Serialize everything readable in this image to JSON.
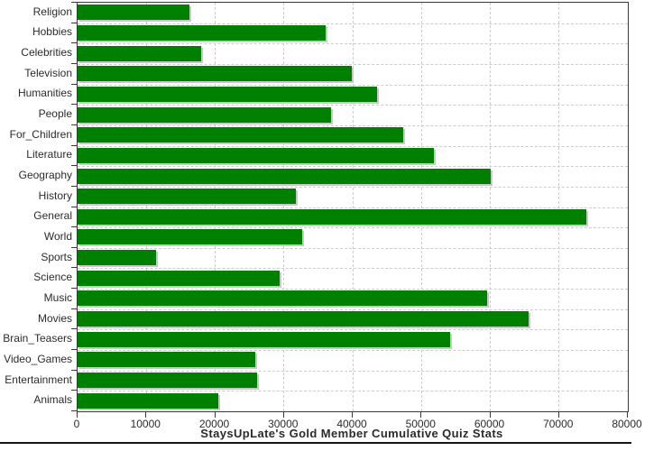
{
  "chart_data": {
    "type": "bar",
    "orientation": "horizontal",
    "title": "StaysUpLate's Gold Member Cumulative Quiz Stats",
    "categories": [
      "Religion",
      "Hobbies",
      "Celebrities",
      "Television",
      "Humanities",
      "People",
      "For_Children",
      "Literature",
      "Geography",
      "History",
      "General",
      "World",
      "Sports",
      "Science",
      "Music",
      "Movies",
      "Brain_Teasers",
      "Video_Games",
      "Entertainment",
      "Animals"
    ],
    "values": [
      16200,
      36000,
      18000,
      39900,
      43600,
      36800,
      47300,
      51800,
      60100,
      31800,
      74000,
      32600,
      11400,
      29400,
      59500,
      65600,
      54100,
      25800,
      26100,
      20500
    ],
    "xlabel": "",
    "ylabel": "",
    "xlim": [
      0,
      80000
    ],
    "x_ticks": [
      0,
      10000,
      20000,
      30000,
      40000,
      50000,
      60000,
      70000,
      80000
    ],
    "grid": "dashed, vertical at every 10000 and horizontal at category boundaries",
    "legend_position": "none",
    "title_position": "bottom",
    "colors": {
      "bar": "#008000",
      "bar_shadow": "#c8c8c8",
      "gridline": "#cccccc",
      "plot_border": "#3a3a3a",
      "text": "#2b2b2b",
      "background": "#ffffff",
      "separator": "#151515"
    }
  }
}
